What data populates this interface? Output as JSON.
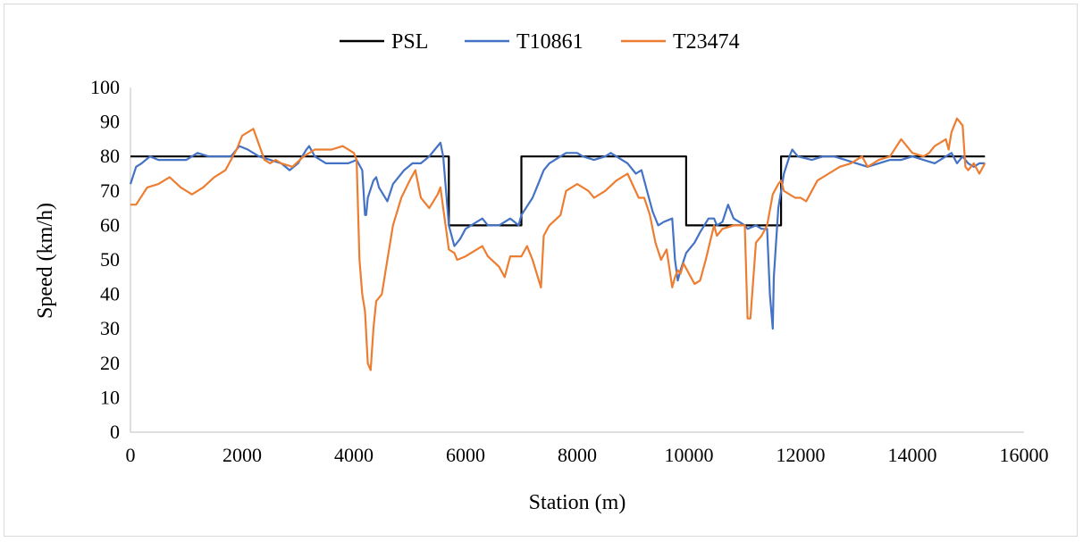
{
  "chart_data": {
    "type": "line",
    "title": "",
    "xlabel": "Station (m)",
    "ylabel": "Speed (km/h)",
    "xlim": [
      0,
      16000
    ],
    "ylim": [
      0,
      100
    ],
    "x_ticks": [
      "0",
      "2000",
      "4000",
      "6000",
      "8000",
      "10000",
      "12000",
      "14000",
      "16000"
    ],
    "y_ticks": [
      "0",
      "10",
      "20",
      "30",
      "40",
      "50",
      "60",
      "70",
      "80",
      "90",
      "100"
    ],
    "grid": false,
    "legend_position": "top",
    "series": [
      {
        "name": "PSL",
        "color": "#000000",
        "points": [
          [
            0,
            80
          ],
          [
            5700,
            80
          ],
          [
            5700,
            60
          ],
          [
            7000,
            60
          ],
          [
            7000,
            80
          ],
          [
            9950,
            80
          ],
          [
            9950,
            60
          ],
          [
            11650,
            60
          ],
          [
            11650,
            80
          ],
          [
            15300,
            80
          ]
        ]
      },
      {
        "name": "T10861",
        "color": "#4472c4",
        "points": [
          [
            0,
            72
          ],
          [
            100,
            77
          ],
          [
            200,
            78
          ],
          [
            350,
            80
          ],
          [
            500,
            79
          ],
          [
            800,
            79
          ],
          [
            1000,
            79
          ],
          [
            1200,
            81
          ],
          [
            1400,
            80
          ],
          [
            1600,
            80
          ],
          [
            1800,
            80
          ],
          [
            1950,
            83
          ],
          [
            2100,
            82
          ],
          [
            2300,
            80
          ],
          [
            2500,
            79
          ],
          [
            2700,
            78
          ],
          [
            2850,
            76
          ],
          [
            3000,
            78
          ],
          [
            3150,
            82
          ],
          [
            3200,
            83
          ],
          [
            3300,
            80
          ],
          [
            3500,
            78
          ],
          [
            3700,
            78
          ],
          [
            3900,
            78
          ],
          [
            4050,
            79
          ],
          [
            4150,
            76
          ],
          [
            4200,
            63
          ],
          [
            4220,
            63
          ],
          [
            4250,
            68
          ],
          [
            4350,
            73
          ],
          [
            4400,
            74
          ],
          [
            4450,
            71
          ],
          [
            4600,
            67
          ],
          [
            4700,
            72
          ],
          [
            4900,
            76
          ],
          [
            5050,
            78
          ],
          [
            5200,
            78
          ],
          [
            5350,
            80
          ],
          [
            5450,
            82
          ],
          [
            5550,
            84
          ],
          [
            5600,
            80
          ],
          [
            5700,
            60
          ],
          [
            5800,
            54
          ],
          [
            5900,
            56
          ],
          [
            6000,
            59
          ],
          [
            6100,
            60
          ],
          [
            6200,
            61
          ],
          [
            6300,
            62
          ],
          [
            6400,
            60
          ],
          [
            6600,
            60
          ],
          [
            6800,
            62
          ],
          [
            6950,
            60
          ],
          [
            7000,
            63
          ],
          [
            7200,
            68
          ],
          [
            7300,
            72
          ],
          [
            7400,
            76
          ],
          [
            7500,
            78
          ],
          [
            7600,
            79
          ],
          [
            7800,
            81
          ],
          [
            8000,
            81
          ],
          [
            8100,
            80
          ],
          [
            8300,
            79
          ],
          [
            8500,
            80
          ],
          [
            8600,
            81
          ],
          [
            8700,
            80
          ],
          [
            8900,
            78
          ],
          [
            9050,
            75
          ],
          [
            9150,
            76
          ],
          [
            9250,
            70
          ],
          [
            9350,
            64
          ],
          [
            9450,
            60
          ],
          [
            9550,
            61
          ],
          [
            9700,
            62
          ],
          [
            9750,
            50
          ],
          [
            9800,
            44
          ],
          [
            9850,
            47
          ],
          [
            9950,
            52
          ],
          [
            10100,
            55
          ],
          [
            10200,
            58
          ],
          [
            10350,
            62
          ],
          [
            10450,
            62
          ],
          [
            10500,
            60
          ],
          [
            10600,
            61
          ],
          [
            10700,
            66
          ],
          [
            10800,
            62
          ],
          [
            10900,
            61
          ],
          [
            11000,
            60
          ],
          [
            11050,
            59
          ],
          [
            11200,
            60
          ],
          [
            11300,
            59
          ],
          [
            11400,
            59
          ],
          [
            11450,
            40
          ],
          [
            11500,
            30
          ],
          [
            11520,
            45
          ],
          [
            11600,
            65
          ],
          [
            11700,
            75
          ],
          [
            11800,
            80
          ],
          [
            11850,
            82
          ],
          [
            11950,
            80
          ],
          [
            12200,
            79
          ],
          [
            12400,
            80
          ],
          [
            12600,
            80
          ],
          [
            12800,
            79
          ],
          [
            13000,
            78
          ],
          [
            13200,
            77
          ],
          [
            13400,
            78
          ],
          [
            13600,
            79
          ],
          [
            13800,
            79
          ],
          [
            14000,
            80
          ],
          [
            14200,
            79
          ],
          [
            14400,
            78
          ],
          [
            14600,
            80
          ],
          [
            14700,
            81
          ],
          [
            14800,
            78
          ],
          [
            14900,
            80
          ],
          [
            15000,
            78
          ],
          [
            15100,
            77
          ],
          [
            15200,
            78
          ],
          [
            15300,
            78
          ]
        ]
      },
      {
        "name": "T23474",
        "color": "#ed7d31",
        "points": [
          [
            0,
            66
          ],
          [
            100,
            66
          ],
          [
            300,
            71
          ],
          [
            500,
            72
          ],
          [
            700,
            74
          ],
          [
            900,
            71
          ],
          [
            1100,
            69
          ],
          [
            1300,
            71
          ],
          [
            1500,
            74
          ],
          [
            1700,
            76
          ],
          [
            1900,
            82
          ],
          [
            2000,
            86
          ],
          [
            2200,
            88
          ],
          [
            2400,
            79
          ],
          [
            2500,
            78
          ],
          [
            2600,
            79
          ],
          [
            2700,
            78
          ],
          [
            2900,
            77
          ],
          [
            3100,
            80
          ],
          [
            3300,
            82
          ],
          [
            3600,
            82
          ],
          [
            3800,
            83
          ],
          [
            4000,
            81
          ],
          [
            4050,
            79
          ],
          [
            4100,
            50
          ],
          [
            4150,
            40
          ],
          [
            4200,
            35
          ],
          [
            4250,
            20
          ],
          [
            4300,
            18
          ],
          [
            4350,
            30
          ],
          [
            4400,
            38
          ],
          [
            4500,
            40
          ],
          [
            4600,
            50
          ],
          [
            4700,
            60
          ],
          [
            4850,
            68
          ],
          [
            5000,
            73
          ],
          [
            5100,
            76
          ],
          [
            5200,
            68
          ],
          [
            5350,
            65
          ],
          [
            5500,
            69
          ],
          [
            5550,
            71
          ],
          [
            5600,
            65
          ],
          [
            5700,
            53
          ],
          [
            5800,
            52
          ],
          [
            5850,
            50
          ],
          [
            6000,
            51
          ],
          [
            6200,
            53
          ],
          [
            6300,
            54
          ],
          [
            6400,
            51
          ],
          [
            6600,
            48
          ],
          [
            6700,
            45
          ],
          [
            6800,
            51
          ],
          [
            7000,
            51
          ],
          [
            7100,
            54
          ],
          [
            7200,
            50
          ],
          [
            7350,
            42
          ],
          [
            7400,
            57
          ],
          [
            7500,
            60
          ],
          [
            7700,
            63
          ],
          [
            7800,
            70
          ],
          [
            8000,
            72
          ],
          [
            8200,
            70
          ],
          [
            8300,
            68
          ],
          [
            8500,
            70
          ],
          [
            8700,
            73
          ],
          [
            8900,
            75
          ],
          [
            9100,
            68
          ],
          [
            9200,
            68
          ],
          [
            9300,
            63
          ],
          [
            9400,
            55
          ],
          [
            9500,
            50
          ],
          [
            9600,
            53
          ],
          [
            9700,
            42
          ],
          [
            9750,
            45
          ],
          [
            9800,
            47
          ],
          [
            9850,
            46
          ],
          [
            9900,
            49
          ],
          [
            10000,
            46
          ],
          [
            10100,
            43
          ],
          [
            10200,
            44
          ],
          [
            10300,
            50
          ],
          [
            10450,
            60
          ],
          [
            10500,
            57
          ],
          [
            10600,
            59
          ],
          [
            10800,
            60
          ],
          [
            11000,
            60
          ],
          [
            11050,
            33
          ],
          [
            11100,
            33
          ],
          [
            11200,
            55
          ],
          [
            11300,
            57
          ],
          [
            11400,
            60
          ],
          [
            11500,
            69
          ],
          [
            11600,
            72
          ],
          [
            11650,
            73
          ],
          [
            11700,
            70
          ],
          [
            11900,
            68
          ],
          [
            12000,
            68
          ],
          [
            12100,
            67
          ],
          [
            12200,
            70
          ],
          [
            12300,
            73
          ],
          [
            12500,
            75
          ],
          [
            12700,
            77
          ],
          [
            12900,
            78
          ],
          [
            13100,
            80
          ],
          [
            13200,
            77
          ],
          [
            13400,
            79
          ],
          [
            13600,
            80
          ],
          [
            13800,
            85
          ],
          [
            13900,
            83
          ],
          [
            14000,
            81
          ],
          [
            14200,
            80
          ],
          [
            14300,
            81
          ],
          [
            14400,
            83
          ],
          [
            14500,
            84
          ],
          [
            14600,
            85
          ],
          [
            14650,
            82
          ],
          [
            14700,
            87
          ],
          [
            14800,
            91
          ],
          [
            14900,
            89
          ],
          [
            14950,
            77
          ],
          [
            15000,
            76
          ],
          [
            15100,
            78
          ],
          [
            15200,
            75
          ],
          [
            15300,
            78
          ]
        ]
      }
    ]
  }
}
